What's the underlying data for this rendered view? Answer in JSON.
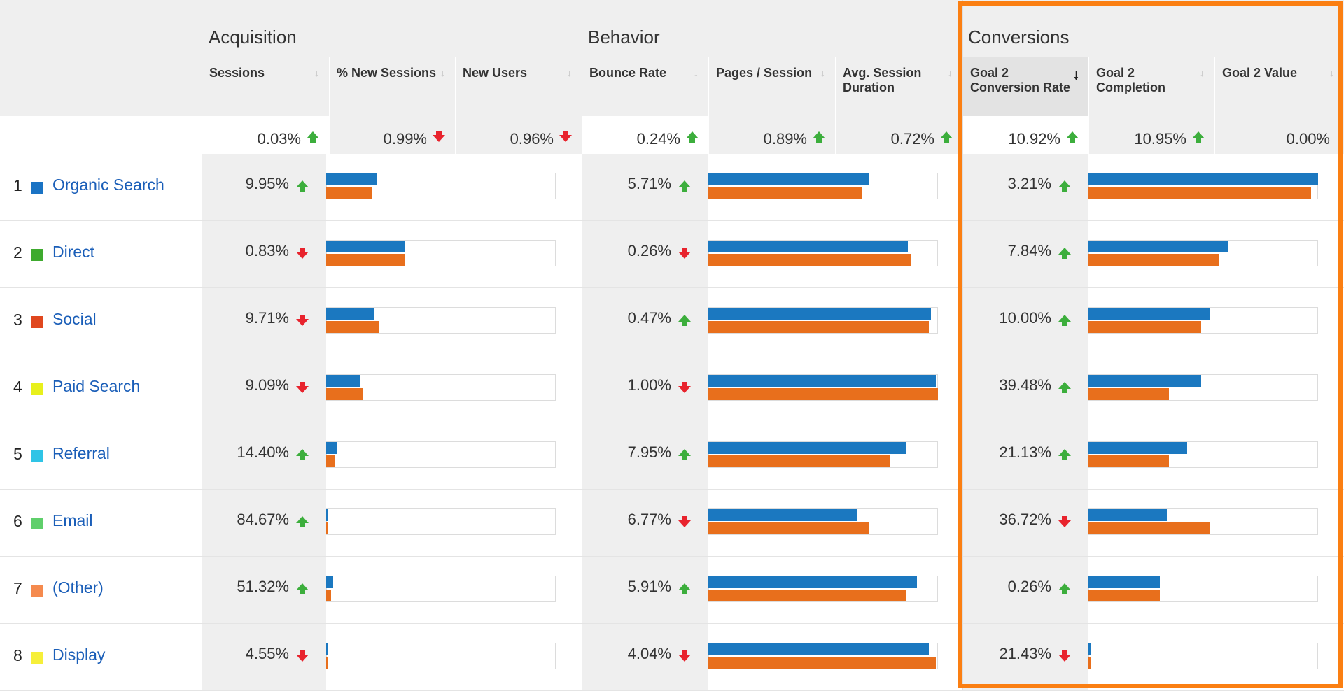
{
  "groups": {
    "acquisition": "Acquisition",
    "behavior": "Behavior",
    "conversions": "Conversions"
  },
  "columns": {
    "sessions": "Sessions",
    "pct_new_sessions": "% New Sessions",
    "new_users": "New Users",
    "bounce_rate": "Bounce Rate",
    "pages_session": "Pages / Session",
    "avg_session_duration": "Avg. Session Duration",
    "goal2_conversion_rate": "Goal 2 Conversion Rate",
    "goal2_completion": "Goal 2 Completion",
    "goal2_value": "Goal 2 Value"
  },
  "sort_icons": {
    "unsorted": "↓",
    "sorted": "🠗"
  },
  "totals": {
    "sessions": {
      "value": "0.03%",
      "dir": "up"
    },
    "pct_new_sessions": {
      "value": "0.99%",
      "dir": "down"
    },
    "new_users": {
      "value": "0.96%",
      "dir": "down"
    },
    "bounce_rate": {
      "value": "0.24%",
      "dir": "up"
    },
    "pages_session": {
      "value": "0.89%",
      "dir": "up"
    },
    "avg_session_duration": {
      "value": "0.72%",
      "dir": "up"
    },
    "goal2_conversion_rate": {
      "value": "10.92%",
      "dir": "up"
    },
    "goal2_completion": {
      "value": "10.95%",
      "dir": "up"
    },
    "goal2_value": {
      "value": "0.00%",
      "dir": "none"
    }
  },
  "colors": {
    "current_period": "#1b78c0",
    "previous_period": "#e86f1c",
    "up": "#3cae3c",
    "down": "#e8232d",
    "highlight": "#fb7f12",
    "link": "#1a5eb8"
  },
  "rows": [
    {
      "index": "1",
      "channel": "Organic Search",
      "swatch": "#1a73c4",
      "sessions": {
        "value": "9.95%",
        "dir": "up"
      },
      "sessions_bars": [
        0.22,
        0.2
      ],
      "bounce_rate": {
        "value": "5.71%",
        "dir": "up"
      },
      "behavior_bars": [
        0.7,
        0.67
      ],
      "goal2_conversion_rate": {
        "value": "3.21%",
        "dir": "up"
      },
      "conversion_bars": [
        1.0,
        0.97
      ]
    },
    {
      "index": "2",
      "channel": "Direct",
      "swatch": "#3eaa2e",
      "sessions": {
        "value": "0.83%",
        "dir": "down"
      },
      "sessions_bars": [
        0.34,
        0.34
      ],
      "bounce_rate": {
        "value": "0.26%",
        "dir": "down"
      },
      "behavior_bars": [
        0.87,
        0.88
      ],
      "goal2_conversion_rate": {
        "value": "7.84%",
        "dir": "up"
      },
      "conversion_bars": [
        0.61,
        0.57
      ]
    },
    {
      "index": "3",
      "channel": "Social",
      "swatch": "#e0471e",
      "sessions": {
        "value": "9.71%",
        "dir": "down"
      },
      "sessions_bars": [
        0.21,
        0.23
      ],
      "bounce_rate": {
        "value": "0.47%",
        "dir": "up"
      },
      "behavior_bars": [
        0.97,
        0.96
      ],
      "goal2_conversion_rate": {
        "value": "10.00%",
        "dir": "up"
      },
      "conversion_bars": [
        0.53,
        0.49
      ]
    },
    {
      "index": "4",
      "channel": "Paid Search",
      "swatch": "#e8f01c",
      "sessions": {
        "value": "9.09%",
        "dir": "down"
      },
      "sessions_bars": [
        0.15,
        0.16
      ],
      "bounce_rate": {
        "value": "1.00%",
        "dir": "down"
      },
      "behavior_bars": [
        0.99,
        1.0
      ],
      "goal2_conversion_rate": {
        "value": "39.48%",
        "dir": "up"
      },
      "conversion_bars": [
        0.49,
        0.35
      ]
    },
    {
      "index": "5",
      "channel": "Referral",
      "swatch": "#2fc4e6",
      "sessions": {
        "value": "14.40%",
        "dir": "up"
      },
      "sessions_bars": [
        0.05,
        0.04
      ],
      "bounce_rate": {
        "value": "7.95%",
        "dir": "up"
      },
      "behavior_bars": [
        0.86,
        0.79
      ],
      "goal2_conversion_rate": {
        "value": "21.13%",
        "dir": "up"
      },
      "conversion_bars": [
        0.43,
        0.35
      ]
    },
    {
      "index": "6",
      "channel": "Email",
      "swatch": "#5fcf6b",
      "sessions": {
        "value": "84.67%",
        "dir": "up"
      },
      "sessions_bars": [
        0.005,
        0.005
      ],
      "bounce_rate": {
        "value": "6.77%",
        "dir": "down"
      },
      "behavior_bars": [
        0.65,
        0.7
      ],
      "goal2_conversion_rate": {
        "value": "36.72%",
        "dir": "down"
      },
      "conversion_bars": [
        0.34,
        0.53
      ]
    },
    {
      "index": "7",
      "channel": "(Other)",
      "swatch": "#f58a4e",
      "sessions": {
        "value": "51.32%",
        "dir": "up"
      },
      "sessions_bars": [
        0.03,
        0.02
      ],
      "bounce_rate": {
        "value": "5.91%",
        "dir": "up"
      },
      "behavior_bars": [
        0.91,
        0.86
      ],
      "goal2_conversion_rate": {
        "value": "0.26%",
        "dir": "up"
      },
      "conversion_bars": [
        0.31,
        0.31
      ]
    },
    {
      "index": "8",
      "channel": "Display",
      "swatch": "#f6ef3a",
      "sessions": {
        "value": "4.55%",
        "dir": "down"
      },
      "sessions_bars": [
        0.005,
        0.005
      ],
      "bounce_rate": {
        "value": "4.04%",
        "dir": "down"
      },
      "behavior_bars": [
        0.96,
        0.99
      ],
      "goal2_conversion_rate": {
        "value": "21.43%",
        "dir": "down"
      },
      "conversion_bars": [
        0.01,
        0.01
      ]
    }
  ]
}
